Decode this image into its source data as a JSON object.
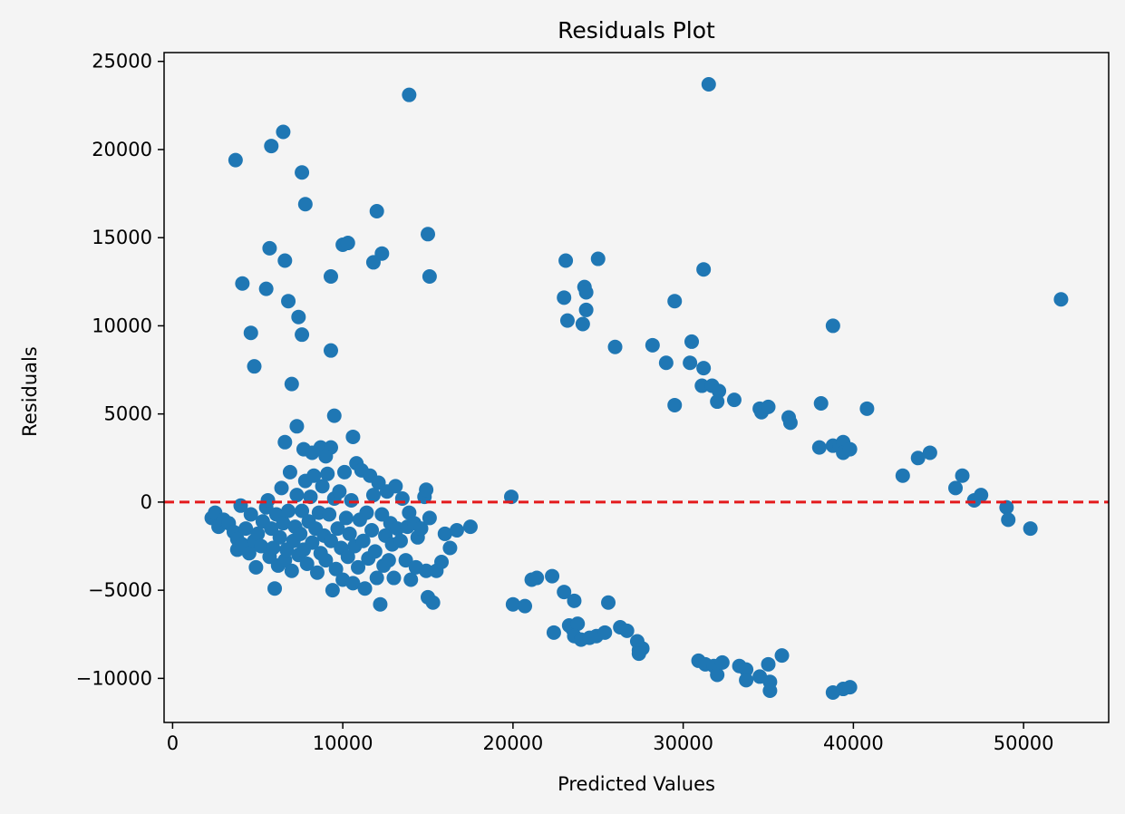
{
  "chart_data": {
    "type": "scatter",
    "title": "Residuals Plot",
    "xlabel": "Predicted Values",
    "ylabel": "Residuals",
    "xlim": [
      -500,
      55000
    ],
    "ylim": [
      -12500,
      25500
    ],
    "xticks": [
      0,
      10000,
      20000,
      30000,
      40000,
      50000
    ],
    "yticks": [
      -10000,
      -5000,
      0,
      5000,
      10000,
      15000,
      20000,
      25000
    ],
    "xtick_labels": [
      "0",
      "10000",
      "20000",
      "30000",
      "40000",
      "50000"
    ],
    "ytick_labels": [
      "−10000",
      "−5000",
      "0",
      "5000",
      "10000",
      "15000",
      "20000",
      "25000"
    ],
    "grid": false,
    "colors": {
      "points": "#1f77b4",
      "reference_line": "#e31a1c",
      "background": "#f4f4f4"
    },
    "reference_line": {
      "y": 0,
      "style": "dashed"
    },
    "series": [
      {
        "points": [
          [
            13900,
            23100
          ],
          [
            31500,
            23700
          ],
          [
            6500,
            21000
          ],
          [
            5800,
            20200
          ],
          [
            3700,
            19400
          ],
          [
            7600,
            18700
          ],
          [
            7800,
            16900
          ],
          [
            12000,
            16500
          ],
          [
            15000,
            15200
          ],
          [
            5700,
            14400
          ],
          [
            10000,
            14600
          ],
          [
            10300,
            14700
          ],
          [
            12300,
            14100
          ],
          [
            11800,
            13600
          ],
          [
            6600,
            13700
          ],
          [
            9300,
            12800
          ],
          [
            15100,
            12800
          ],
          [
            4100,
            12400
          ],
          [
            5500,
            12100
          ],
          [
            6800,
            11400
          ],
          [
            7400,
            10500
          ],
          [
            4600,
            9600
          ],
          [
            7600,
            9500
          ],
          [
            9300,
            8600
          ],
          [
            4800,
            7700
          ],
          [
            7000,
            6700
          ],
          [
            9500,
            4900
          ],
          [
            7300,
            4300
          ],
          [
            10600,
            3700
          ],
          [
            6600,
            3400
          ],
          [
            7700,
            3000
          ],
          [
            8200,
            2800
          ],
          [
            8700,
            3100
          ],
          [
            9300,
            3100
          ],
          [
            9000,
            2600
          ],
          [
            23100,
            13700
          ],
          [
            25000,
            13800
          ],
          [
            23000,
            11600
          ],
          [
            24200,
            12200
          ],
          [
            24300,
            11900
          ],
          [
            24300,
            10900
          ],
          [
            23200,
            10300
          ],
          [
            24100,
            10100
          ],
          [
            26000,
            8800
          ],
          [
            28200,
            8900
          ],
          [
            29000,
            7900
          ],
          [
            29500,
            11400
          ],
          [
            30500,
            9100
          ],
          [
            30400,
            7900
          ],
          [
            31200,
            7600
          ],
          [
            31200,
            13200
          ],
          [
            31100,
            6600
          ],
          [
            31700,
            6600
          ],
          [
            32100,
            6300
          ],
          [
            32000,
            5700
          ],
          [
            29500,
            5500
          ],
          [
            33000,
            5800
          ],
          [
            34500,
            5300
          ],
          [
            34600,
            5100
          ],
          [
            35000,
            5400
          ],
          [
            36200,
            4800
          ],
          [
            36300,
            4500
          ],
          [
            38100,
            5600
          ],
          [
            38800,
            10000
          ],
          [
            40800,
            5300
          ],
          [
            38000,
            3100
          ],
          [
            38800,
            3200
          ],
          [
            39200,
            3200
          ],
          [
            39400,
            3400
          ],
          [
            39400,
            2800
          ],
          [
            39800,
            3000
          ],
          [
            42900,
            1500
          ],
          [
            43800,
            2500
          ],
          [
            44500,
            2800
          ],
          [
            46000,
            800
          ],
          [
            46400,
            1500
          ],
          [
            47100,
            100
          ],
          [
            47500,
            400
          ],
          [
            49000,
            -300
          ],
          [
            49100,
            -1000
          ],
          [
            50400,
            -1500
          ],
          [
            52200,
            11500
          ],
          [
            19900,
            300
          ],
          [
            20000,
            -5800
          ],
          [
            20700,
            -5900
          ],
          [
            21100,
            -4400
          ],
          [
            21400,
            -4300
          ],
          [
            22300,
            -4200
          ],
          [
            23000,
            -5100
          ],
          [
            23600,
            -5600
          ],
          [
            22400,
            -7400
          ],
          [
            23300,
            -7000
          ],
          [
            23500,
            -7200
          ],
          [
            23800,
            -6900
          ],
          [
            23600,
            -7600
          ],
          [
            24000,
            -7800
          ],
          [
            24500,
            -7700
          ],
          [
            24900,
            -7600
          ],
          [
            25400,
            -7400
          ],
          [
            25600,
            -5700
          ],
          [
            26300,
            -7100
          ],
          [
            26700,
            -7300
          ],
          [
            27300,
            -7900
          ],
          [
            27600,
            -8300
          ],
          [
            27400,
            -8400
          ],
          [
            27400,
            -8600
          ],
          [
            30900,
            -9000
          ],
          [
            31300,
            -9200
          ],
          [
            31800,
            -9300
          ],
          [
            32000,
            -9800
          ],
          [
            32300,
            -9100
          ],
          [
            33300,
            -9300
          ],
          [
            33700,
            -9500
          ],
          [
            33700,
            -10100
          ],
          [
            34500,
            -9900
          ],
          [
            35000,
            -9200
          ],
          [
            35100,
            -10200
          ],
          [
            35100,
            -10700
          ],
          [
            35800,
            -8700
          ],
          [
            38800,
            -10800
          ],
          [
            39400,
            -10600
          ],
          [
            39800,
            -10500
          ],
          [
            2300,
            -900
          ],
          [
            2500,
            -600
          ],
          [
            2700,
            -1400
          ],
          [
            3000,
            -1000
          ],
          [
            3300,
            -1200
          ],
          [
            3600,
            -1700
          ],
          [
            3800,
            -2100
          ],
          [
            3800,
            -2700
          ],
          [
            4000,
            -200
          ],
          [
            4100,
            -2400
          ],
          [
            4300,
            -1500
          ],
          [
            4500,
            -2900
          ],
          [
            4600,
            -700
          ],
          [
            4800,
            -2200
          ],
          [
            4900,
            -3700
          ],
          [
            5000,
            -1800
          ],
          [
            5200,
            -2500
          ],
          [
            5300,
            -1100
          ],
          [
            5500,
            -300
          ],
          [
            5600,
            100
          ],
          [
            5700,
            -3100
          ],
          [
            5800,
            -1500
          ],
          [
            5900,
            -2600
          ],
          [
            6000,
            -4900
          ],
          [
            6100,
            -700
          ],
          [
            6200,
            -3600
          ],
          [
            6300,
            -2000
          ],
          [
            6400,
            800
          ],
          [
            6500,
            -1200
          ],
          [
            6600,
            -3300
          ],
          [
            6700,
            -2700
          ],
          [
            6800,
            -500
          ],
          [
            6900,
            1700
          ],
          [
            7000,
            -3900
          ],
          [
            7100,
            -2200
          ],
          [
            7200,
            -1400
          ],
          [
            7300,
            400
          ],
          [
            7400,
            -3000
          ],
          [
            7500,
            -1800
          ],
          [
            7600,
            -500
          ],
          [
            7700,
            -2700
          ],
          [
            7800,
            1200
          ],
          [
            7900,
            -3500
          ],
          [
            8000,
            -1100
          ],
          [
            8100,
            300
          ],
          [
            8200,
            -2300
          ],
          [
            8300,
            1500
          ],
          [
            8400,
            -1500
          ],
          [
            8500,
            -4000
          ],
          [
            8600,
            -600
          ],
          [
            8700,
            -2900
          ],
          [
            8800,
            900
          ],
          [
            8900,
            -1900
          ],
          [
            9000,
            -3300
          ],
          [
            9100,
            1600
          ],
          [
            9200,
            -700
          ],
          [
            9300,
            -2200
          ],
          [
            9400,
            -5000
          ],
          [
            9500,
            200
          ],
          [
            9600,
            -3800
          ],
          [
            9700,
            -1500
          ],
          [
            9800,
            600
          ],
          [
            9900,
            -2600
          ],
          [
            10000,
            -4400
          ],
          [
            10100,
            1700
          ],
          [
            10200,
            -900
          ],
          [
            10300,
            -3100
          ],
          [
            10400,
            -1800
          ],
          [
            10500,
            100
          ],
          [
            10600,
            -4600
          ],
          [
            10700,
            -2500
          ],
          [
            10800,
            2200
          ],
          [
            10900,
            -3700
          ],
          [
            11000,
            -1000
          ],
          [
            11100,
            1800
          ],
          [
            11200,
            -2200
          ],
          [
            11300,
            -4900
          ],
          [
            11400,
            -600
          ],
          [
            11500,
            -3200
          ],
          [
            11600,
            1500
          ],
          [
            11700,
            -1600
          ],
          [
            11800,
            400
          ],
          [
            11900,
            -2800
          ],
          [
            12000,
            -4300
          ],
          [
            12100,
            1100
          ],
          [
            12200,
            -5800
          ],
          [
            12300,
            -700
          ],
          [
            12400,
            -3600
          ],
          [
            12500,
            -1900
          ],
          [
            12600,
            600
          ],
          [
            12700,
            -3300
          ],
          [
            12800,
            -1200
          ],
          [
            12900,
            -2400
          ],
          [
            13000,
            -4300
          ],
          [
            13100,
            900
          ],
          [
            13200,
            -1500
          ],
          [
            13400,
            -2200
          ],
          [
            13500,
            200
          ],
          [
            13700,
            -3300
          ],
          [
            13800,
            -1400
          ],
          [
            13900,
            -600
          ],
          [
            14000,
            -4400
          ],
          [
            14200,
            -1200
          ],
          [
            14300,
            -3700
          ],
          [
            14400,
            -2000
          ],
          [
            14600,
            -1500
          ],
          [
            14800,
            300
          ],
          [
            14900,
            -3900
          ],
          [
            15000,
            -5400
          ],
          [
            15100,
            -900
          ],
          [
            15300,
            -5700
          ],
          [
            15500,
            -3900
          ],
          [
            15800,
            -3400
          ],
          [
            16000,
            -1800
          ],
          [
            16300,
            -2600
          ],
          [
            16700,
            -1600
          ],
          [
            17500,
            -1400
          ],
          [
            14900,
            700
          ]
        ]
      }
    ]
  }
}
